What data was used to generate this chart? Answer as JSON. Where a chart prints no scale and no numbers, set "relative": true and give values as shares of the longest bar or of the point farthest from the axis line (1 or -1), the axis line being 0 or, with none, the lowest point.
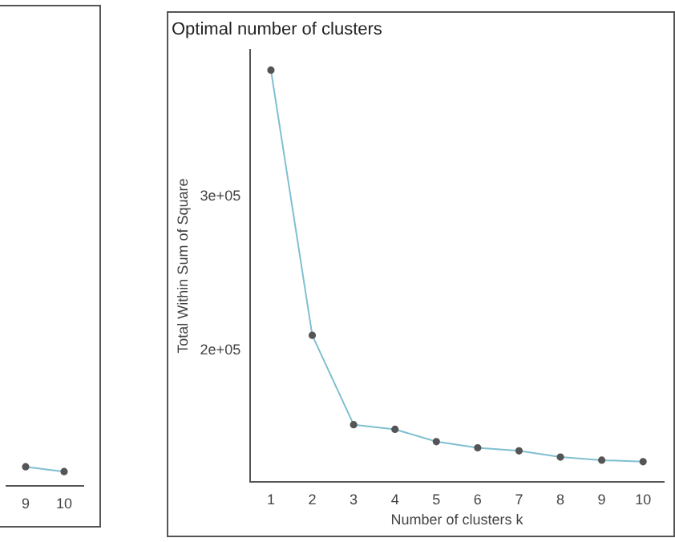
{
  "chart_data": [
    {
      "type": "line",
      "relative": true,
      "categories": [
        "9",
        "10"
      ],
      "color": "#7fbfd0",
      "marker": "circle",
      "grid": false,
      "legend": false,
      "values": [
        1,
        0.75
      ]
    },
    {
      "type": "line",
      "title": "Optimal number of clusters",
      "xlabel": "Number of clusters k",
      "ylabel": "Total Within Sum of Square",
      "categories": [
        "1",
        "2",
        "3",
        "4",
        "5",
        "6",
        "7",
        "8",
        "9",
        "10"
      ],
      "color": "#7fbfd0",
      "marker": "circle",
      "grid": false,
      "legend": false,
      "ylim": [
        115000,
        395000
      ],
      "yticks": [
        {
          "value": 200000,
          "label": "2e+05"
        },
        {
          "value": 300000,
          "label": "3e+05"
        }
      ],
      "values": [
        382000,
        210000,
        152000,
        149000,
        141000,
        137000,
        135000,
        131000,
        129000,
        128000
      ]
    }
  ]
}
